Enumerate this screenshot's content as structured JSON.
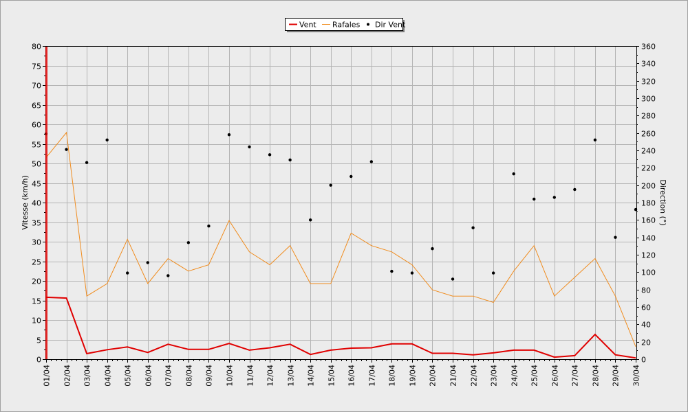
{
  "chart_data": {
    "type": "line",
    "categories": [
      "01/04",
      "02/04",
      "03/04",
      "04/04",
      "05/04",
      "06/04",
      "07/04",
      "08/04",
      "09/04",
      "10/04",
      "11/04",
      "12/04",
      "13/04",
      "14/04",
      "15/04",
      "16/04",
      "17/04",
      "18/04",
      "19/04",
      "20/04",
      "21/04",
      "22/04",
      "23/04",
      "24/04",
      "25/04",
      "26/04",
      "27/04",
      "28/04",
      "29/04",
      "30/04"
    ],
    "ylabel": "Vitesse (km/h)",
    "y2label": "Direction (°)",
    "ylim": [
      0,
      80
    ],
    "y2lim": [
      0,
      360
    ],
    "grid": true,
    "legend_position": "top-center",
    "series": [
      {
        "name": "Vent",
        "axis": "left",
        "style": "line",
        "color": "#e00000",
        "values": [
          15.8,
          15.6,
          1.4,
          2.4,
          3.1,
          1.7,
          3.8,
          2.5,
          2.5,
          4.0,
          2.3,
          2.9,
          3.8,
          1.2,
          2.3,
          2.8,
          2.9,
          3.9,
          3.9,
          1.5,
          1.5,
          1.1,
          1.6,
          2.3,
          2.3,
          0.5,
          0.9,
          6.3,
          1.1,
          0.3
        ]
      },
      {
        "name": "Rafales",
        "axis": "left",
        "style": "line",
        "color": "#f08c1e",
        "values": [
          51.5,
          57.9,
          16.1,
          19.3,
          30.6,
          19.3,
          25.7,
          22.5,
          24.1,
          35.4,
          27.4,
          24.1,
          29.0,
          19.3,
          19.3,
          32.2,
          29.0,
          27.4,
          24.1,
          17.7,
          16.1,
          16.1,
          14.5,
          22.5,
          29.0,
          16.1,
          20.9,
          25.7,
          16.1,
          3.2
        ]
      },
      {
        "name": "Dir Vent",
        "axis": "right",
        "style": "points",
        "color": "#000000",
        "values": [
          259,
          241,
          226,
          252,
          99,
          111,
          96,
          134,
          153,
          258,
          244,
          235,
          229,
          160,
          200,
          210,
          227,
          101,
          99,
          127,
          92,
          151,
          99,
          213,
          184,
          186,
          195,
          252,
          140,
          172
        ]
      }
    ]
  }
}
